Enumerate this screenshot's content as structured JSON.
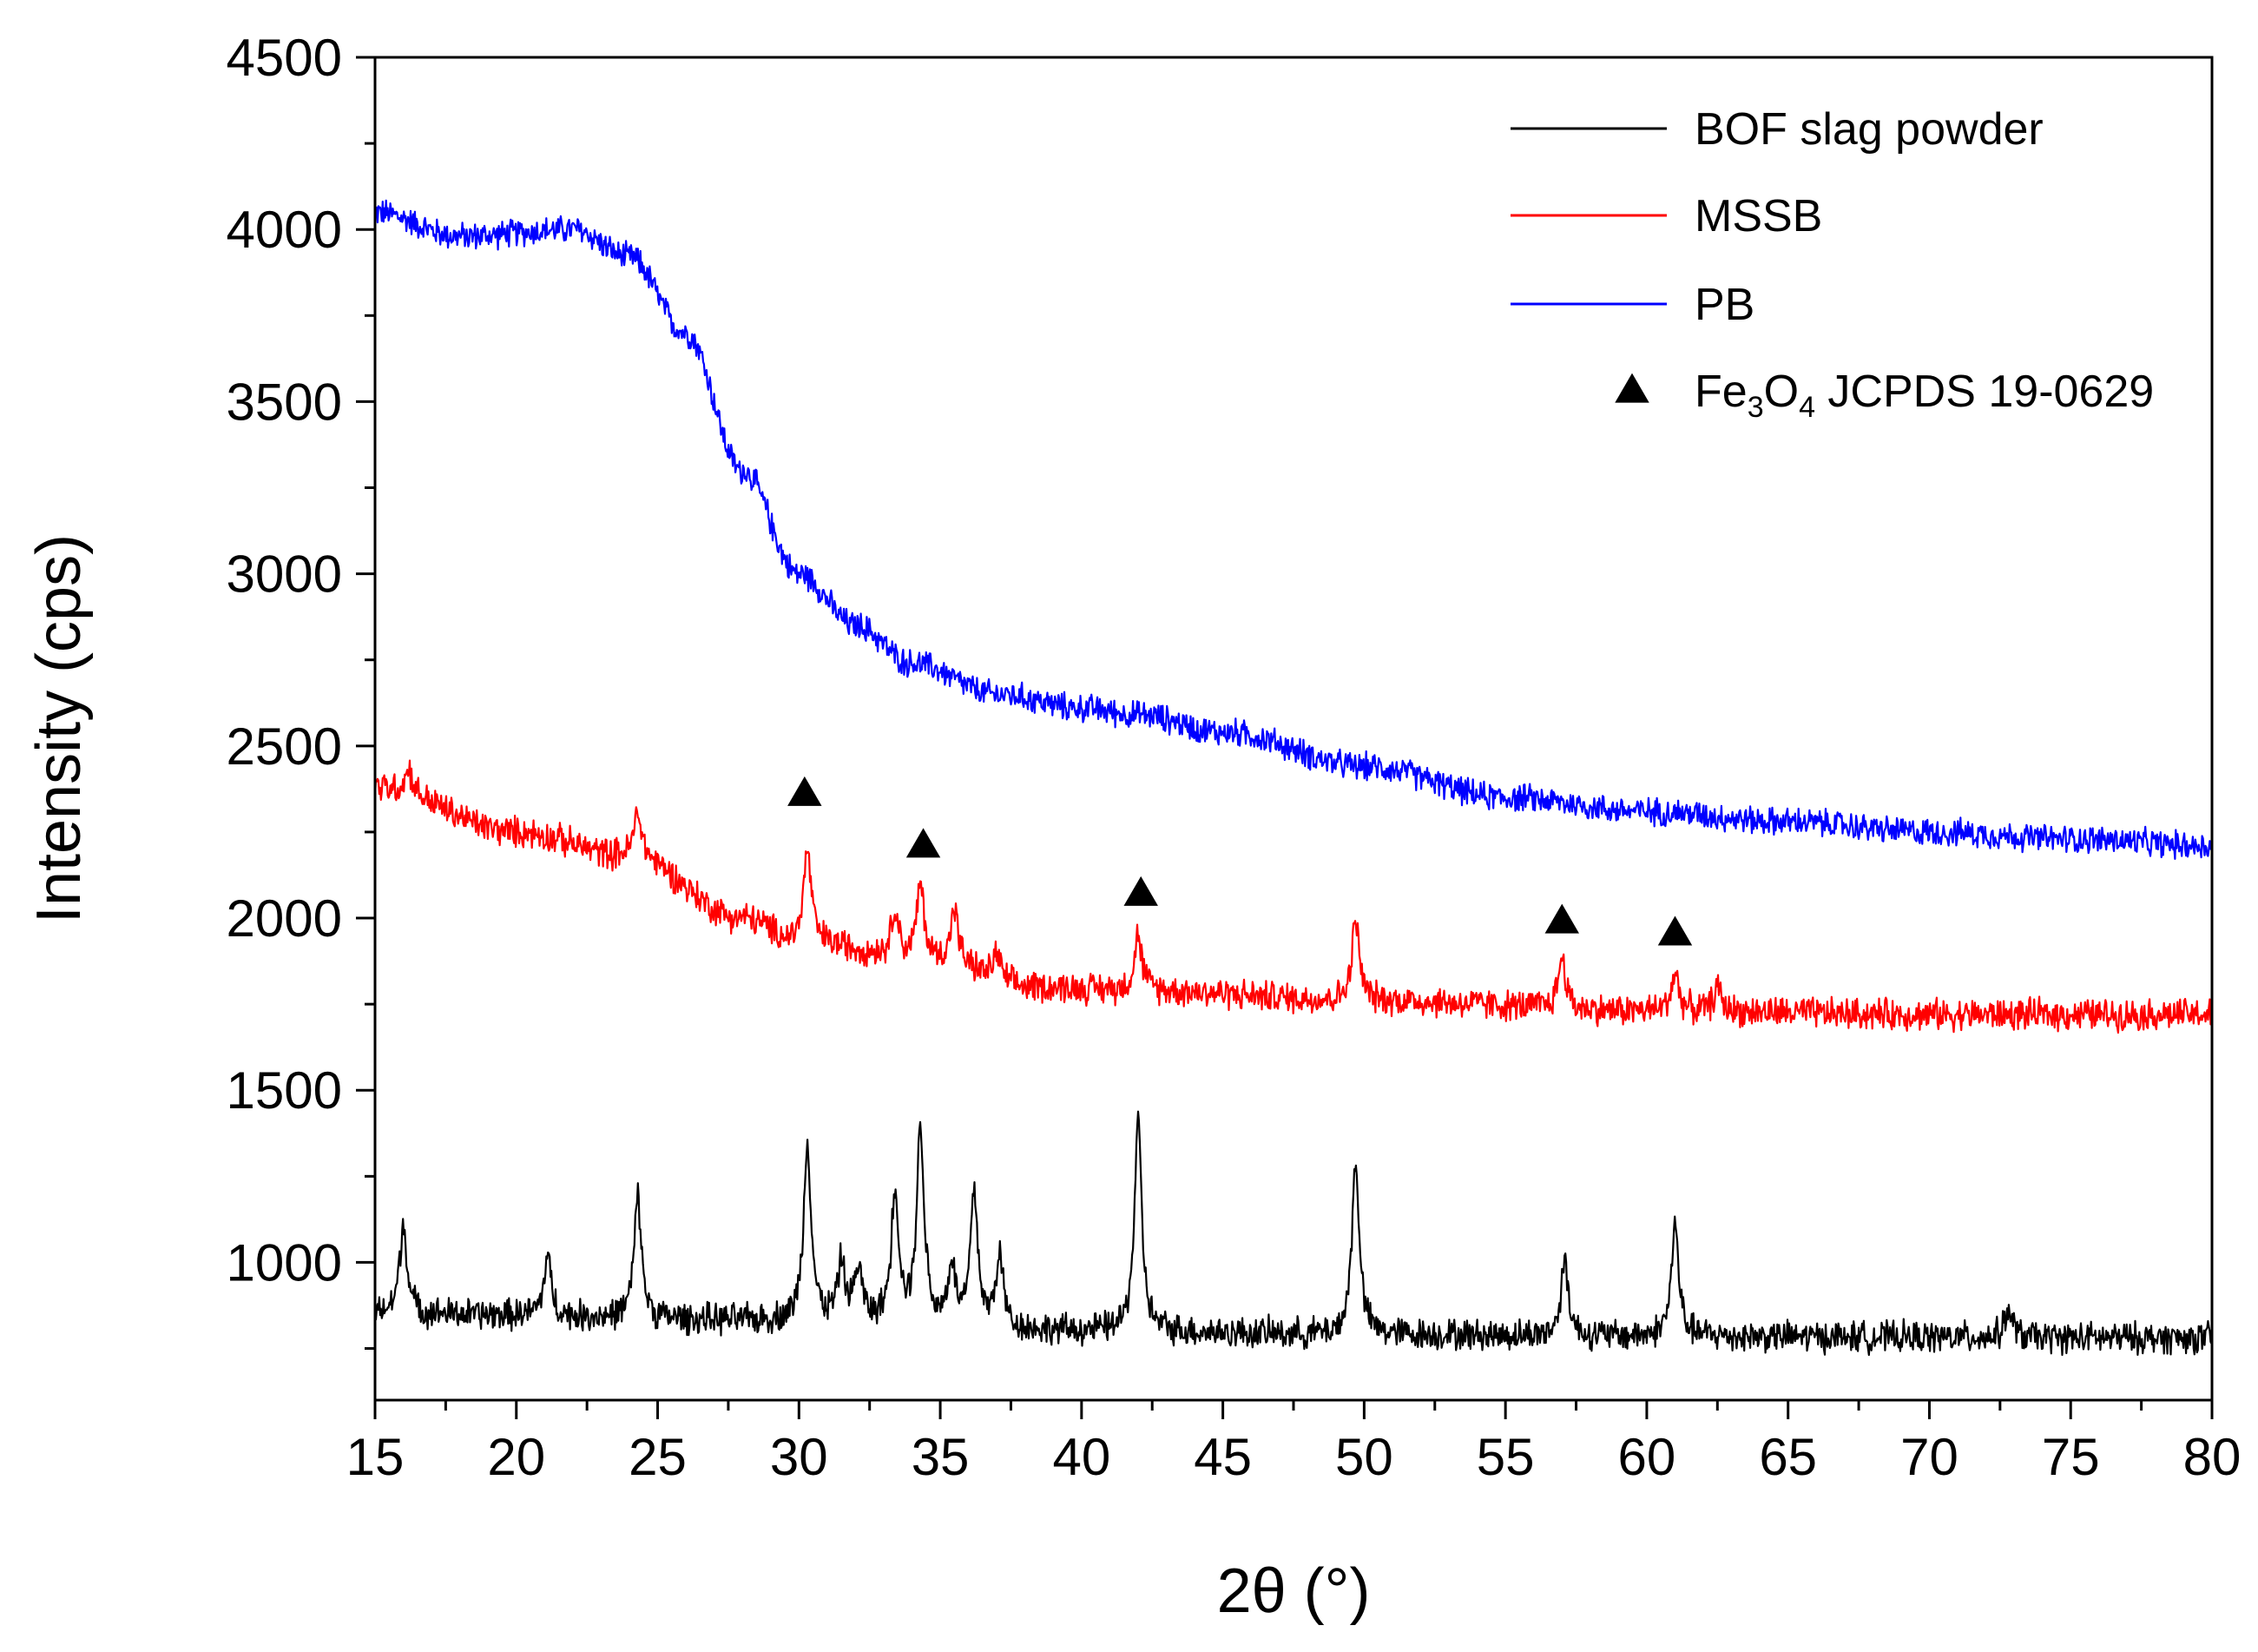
{
  "chart_data": {
    "type": "line",
    "title": "",
    "xlabel": "2θ (°)",
    "ylabel": "Intensity (cps)",
    "xlim": [
      15,
      80
    ],
    "ylim": [
      600,
      4500
    ],
    "x_ticks": [
      15,
      20,
      25,
      30,
      35,
      40,
      45,
      50,
      55,
      60,
      65,
      70,
      75,
      80
    ],
    "x_tick_labels": [
      "15",
      "20",
      "25",
      "30",
      "35",
      "40",
      "45",
      "50",
      "55",
      "60",
      "65",
      "70",
      "75",
      "80"
    ],
    "y_ticks": [
      1000,
      1500,
      2000,
      2500,
      3000,
      3500,
      4000,
      4500
    ],
    "y_tick_labels": [
      "1000",
      "1500",
      "2000",
      "2500",
      "3000",
      "3500",
      "4000",
      "4500"
    ],
    "grid": false,
    "legend_position": "top-right",
    "series": [
      {
        "name": "BOF slag powder",
        "color": "#000000",
        "baseline": [
          [
            15,
            850
          ],
          [
            30,
            830
          ],
          [
            40,
            800
          ],
          [
            50,
            790
          ],
          [
            60,
            785
          ],
          [
            80,
            780
          ]
        ],
        "peaks": [
          [
            16.0,
            260
          ],
          [
            21.1,
            170
          ],
          [
            24.3,
            350
          ],
          [
            30.3,
            520
          ],
          [
            31.5,
            160
          ],
          [
            32.1,
            150
          ],
          [
            33.4,
            380
          ],
          [
            34.3,
            560
          ],
          [
            35.4,
            170
          ],
          [
            36.2,
            380
          ],
          [
            37.1,
            210
          ],
          [
            42.0,
            600
          ],
          [
            49.7,
            500
          ],
          [
            57.1,
            220
          ],
          [
            61.0,
            320
          ],
          [
            72.8,
            80
          ]
        ],
        "noise": 45
      },
      {
        "name": "MSSB",
        "color": "#ff0000",
        "baseline": [
          [
            15,
            2380
          ],
          [
            20,
            2250
          ],
          [
            24,
            2180
          ],
          [
            28,
            2000
          ],
          [
            30,
            1930
          ],
          [
            35,
            1870
          ],
          [
            38,
            1800
          ],
          [
            42,
            1790
          ],
          [
            50,
            1760
          ],
          [
            60,
            1730
          ],
          [
            70,
            1720
          ],
          [
            80,
            1720
          ]
        ],
        "peaks": [
          [
            16.2,
            70
          ],
          [
            24.3,
            130
          ],
          [
            30.3,
            270
          ],
          [
            33.4,
            140
          ],
          [
            34.3,
            220
          ],
          [
            35.5,
            160
          ],
          [
            37.0,
            80
          ],
          [
            42.0,
            160
          ],
          [
            49.7,
            230
          ],
          [
            57.0,
            150
          ],
          [
            61.0,
            110
          ],
          [
            62.5,
            70
          ]
        ],
        "noise": 45
      },
      {
        "name": "PB",
        "color": "#0000ff",
        "baseline": [
          [
            15,
            4050
          ],
          [
            18,
            3980
          ],
          [
            22,
            4000
          ],
          [
            24,
            3920
          ],
          [
            26,
            3700
          ],
          [
            28,
            3300
          ],
          [
            30,
            3000
          ],
          [
            32,
            2850
          ],
          [
            34,
            2740
          ],
          [
            37,
            2650
          ],
          [
            40,
            2610
          ],
          [
            42,
            2590
          ],
          [
            45,
            2540
          ],
          [
            50,
            2440
          ],
          [
            55,
            2350
          ],
          [
            60,
            2310
          ],
          [
            65,
            2280
          ],
          [
            70,
            2250
          ],
          [
            75,
            2230
          ],
          [
            80,
            2210
          ]
        ],
        "peaks": [],
        "noise": 40
      }
    ],
    "markers": {
      "name": "Fe3O4 JCPDS 19-0629",
      "symbol": "triangle",
      "color": "#000000",
      "points": [
        [
          30.2,
          2360
        ],
        [
          34.4,
          2210
        ],
        [
          42.1,
          2070
        ],
        [
          57.0,
          1990
        ],
        [
          61.0,
          1955
        ]
      ]
    }
  },
  "legend": {
    "items": [
      {
        "label": "BOF slag powder",
        "color": "#000000"
      },
      {
        "label": "MSSB",
        "color": "#ff0000"
      },
      {
        "label": "PB",
        "color": "#0000ff"
      }
    ],
    "marker_label_prefix": "Fe",
    "marker_label_sub1": "3",
    "marker_label_mid": "O",
    "marker_label_sub2": "4",
    "marker_label_suffix": " JCPDS 19-0629"
  }
}
